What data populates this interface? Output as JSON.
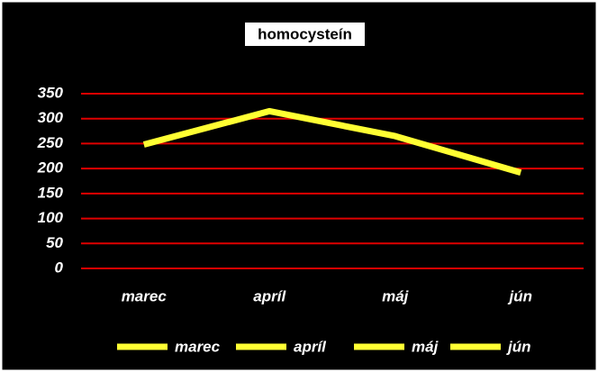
{
  "chart_data": {
    "type": "line",
    "title": "homocysteín",
    "categories": [
      "marec",
      "apríl",
      "máj",
      "jún"
    ],
    "values": [
      248,
      315,
      265,
      192
    ],
    "color": "#ffff33",
    "grid_color": "#e00000",
    "ylim": [
      0,
      350
    ],
    "yticks": [
      0,
      50,
      100,
      150,
      200,
      250,
      300,
      350
    ],
    "grid": true,
    "legend": "bottom"
  }
}
